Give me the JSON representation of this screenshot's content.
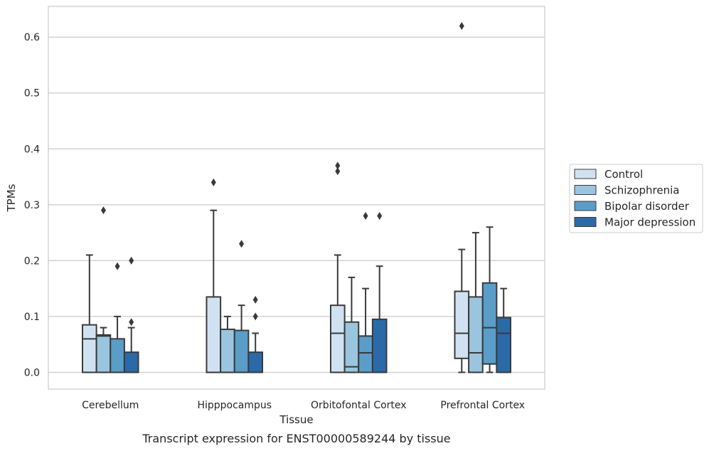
{
  "chart_data": {
    "type": "box",
    "title": "",
    "xlabel": "Tissue",
    "ylabel": "TPMs",
    "caption": "Transcript expression for ENST00000589244 by tissue",
    "ylim": [
      -0.03,
      0.655
    ],
    "yticks": [
      "0.0",
      "0.1",
      "0.2",
      "0.3",
      "0.4",
      "0.5",
      "0.6"
    ],
    "grid": "horizontal",
    "legend_position": "right",
    "categories": [
      "Cerebellum",
      "Hipppocampus",
      "Orbitofontal Cortex",
      "Prefrontal Cortex"
    ],
    "series": [
      {
        "name": "Control",
        "color": "#d0e2f2",
        "boxes": [
          {
            "whislo": 0.0,
            "q1": 0.0,
            "med": 0.06,
            "q3": 0.085,
            "whishi": 0.21,
            "fliers": []
          },
          {
            "whislo": 0.0,
            "q1": 0.0,
            "med": 0.0,
            "q3": 0.135,
            "whishi": 0.29,
            "fliers": [
              0.34
            ]
          },
          {
            "whislo": 0.0,
            "q1": 0.0,
            "med": 0.07,
            "q3": 0.12,
            "whishi": 0.21,
            "fliers": [
              0.36,
              0.37
            ]
          },
          {
            "whislo": 0.0,
            "q1": 0.025,
            "med": 0.07,
            "q3": 0.145,
            "whishi": 0.22,
            "fliers": [
              0.62
            ]
          }
        ]
      },
      {
        "name": "Schizophrenia",
        "color": "#9bc5de",
        "boxes": [
          {
            "whislo": 0.0,
            "q1": 0.0,
            "med": 0.065,
            "q3": 0.067,
            "whishi": 0.08,
            "fliers": [
              0.29
            ]
          },
          {
            "whislo": 0.0,
            "q1": 0.0,
            "med": 0.0,
            "q3": 0.077,
            "whishi": 0.1,
            "fliers": []
          },
          {
            "whislo": 0.0,
            "q1": 0.0,
            "med": 0.01,
            "q3": 0.09,
            "whishi": 0.17,
            "fliers": []
          },
          {
            "whislo": 0.0,
            "q1": 0.0,
            "med": 0.035,
            "q3": 0.135,
            "whishi": 0.25,
            "fliers": []
          }
        ]
      },
      {
        "name": "Bipolar disorder",
        "color": "#5a9dc9",
        "boxes": [
          {
            "whislo": 0.0,
            "q1": 0.0,
            "med": 0.0,
            "q3": 0.06,
            "whishi": 0.1,
            "fliers": [
              0.19
            ]
          },
          {
            "whislo": 0.0,
            "q1": 0.0,
            "med": 0.0,
            "q3": 0.075,
            "whishi": 0.12,
            "fliers": [
              0.23
            ]
          },
          {
            "whislo": 0.0,
            "q1": 0.0,
            "med": 0.035,
            "q3": 0.065,
            "whishi": 0.15,
            "fliers": [
              0.28
            ]
          },
          {
            "whislo": 0.0,
            "q1": 0.015,
            "med": 0.08,
            "q3": 0.16,
            "whishi": 0.26,
            "fliers": []
          }
        ]
      },
      {
        "name": "Major depression",
        "color": "#2b6aa8",
        "boxes": [
          {
            "whislo": 0.0,
            "q1": 0.0,
            "med": 0.0,
            "q3": 0.036,
            "whishi": 0.08,
            "fliers": [
              0.09,
              0.2
            ]
          },
          {
            "whislo": 0.0,
            "q1": 0.0,
            "med": 0.0,
            "q3": 0.036,
            "whishi": 0.07,
            "fliers": [
              0.1,
              0.13
            ]
          },
          {
            "whislo": 0.0,
            "q1": 0.0,
            "med": 0.0,
            "q3": 0.095,
            "whishi": 0.19,
            "fliers": [
              0.28
            ]
          },
          {
            "whislo": 0.0,
            "q1": 0.0,
            "med": 0.07,
            "q3": 0.098,
            "whishi": 0.15,
            "fliers": []
          }
        ]
      }
    ]
  }
}
